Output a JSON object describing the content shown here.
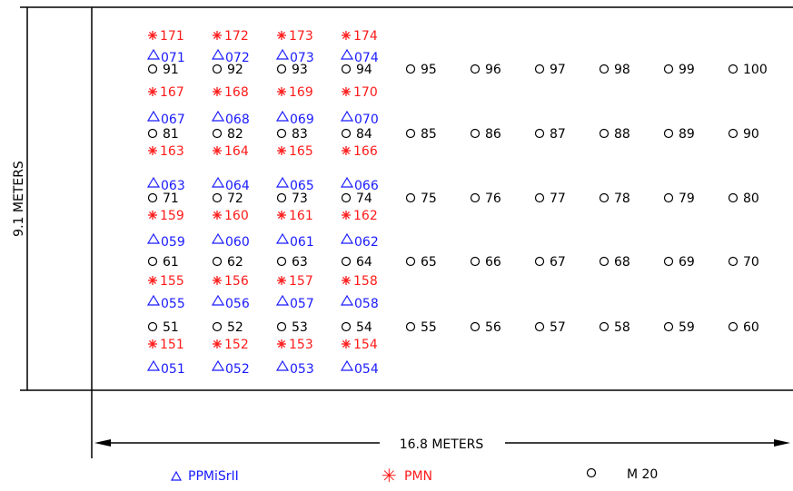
{
  "dimensions": {
    "height_label": "9.1 METERS",
    "width_label": "16.8 METERS"
  },
  "colors": {
    "triangle": "#1a1aff",
    "asterisk": "#ff1a1a",
    "circle": "#000000",
    "frame": "#000000"
  },
  "legend": [
    {
      "symbol": "triangle",
      "label": "PPMiSrII"
    },
    {
      "symbol": "asterisk",
      "label": "PMN"
    },
    {
      "symbol": "circle",
      "label": "M 20"
    }
  ],
  "diagram_data": {
    "groups": [
      {
        "asterisk": [
          "171",
          "172",
          "173",
          "174"
        ],
        "triangle": [
          "071",
          "072",
          "073",
          "074"
        ],
        "circle": [
          "91",
          "92",
          "93",
          "94",
          "95",
          "96",
          "97",
          "98",
          "99",
          "100"
        ]
      },
      {
        "asterisk": [
          "167",
          "168",
          "169",
          "170"
        ],
        "triangle": [
          "067",
          "068",
          "069",
          "070"
        ],
        "circle": [
          "81",
          "82",
          "83",
          "84",
          "85",
          "86",
          "87",
          "88",
          "89",
          "90"
        ],
        "asterisk_below": [
          "163",
          "164",
          "165",
          "166"
        ]
      },
      {
        "triangle": [
          "063",
          "064",
          "065",
          "066"
        ],
        "circle": [
          "71",
          "72",
          "73",
          "74",
          "75",
          "76",
          "77",
          "78",
          "79",
          "80"
        ],
        "asterisk_below": [
          "159",
          "160",
          "161",
          "162"
        ]
      },
      {
        "triangle": [
          "059",
          "060",
          "061",
          "062"
        ],
        "circle": [
          "61",
          "62",
          "63",
          "64",
          "65",
          "66",
          "67",
          "68",
          "69",
          "70"
        ],
        "asterisk_below": [
          "155",
          "156",
          "157",
          "158"
        ]
      },
      {
        "triangle": [
          "055",
          "056",
          "057",
          "058"
        ],
        "circle": [
          "51",
          "52",
          "53",
          "54",
          "55",
          "56",
          "57",
          "58",
          "59",
          "60"
        ],
        "asterisk_below": [
          "151",
          "152",
          "153",
          "154"
        ],
        "triangle_below": [
          "051",
          "052",
          "053",
          "054"
        ]
      }
    ]
  }
}
